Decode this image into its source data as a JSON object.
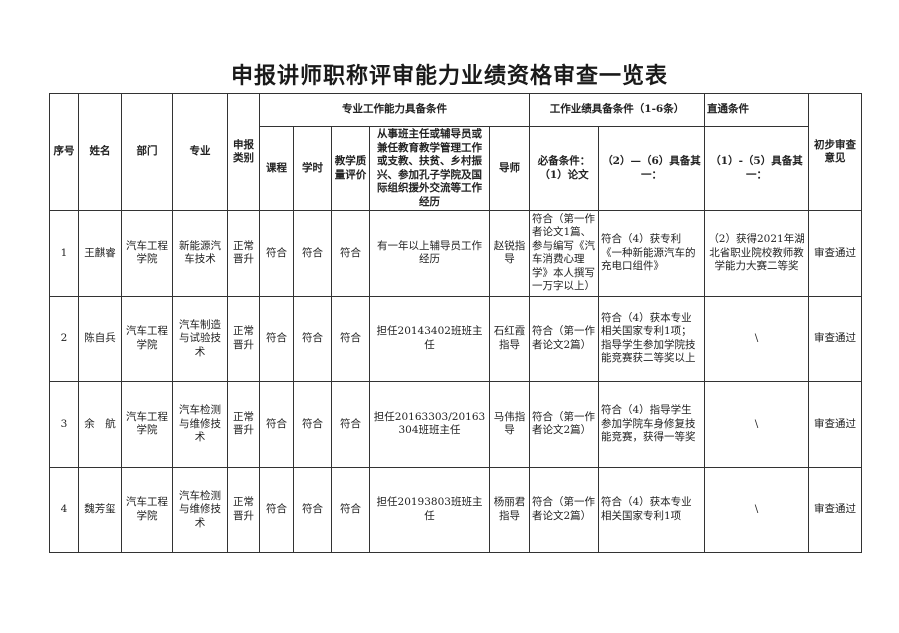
{
  "title": "申报讲师职称评审能力业绩资格审查一览表",
  "headers": {
    "seq": "序号",
    "name": "姓名",
    "dept": "部门",
    "major": "专业",
    "category": "申报类别",
    "group_ability": "专业工作能力具备条件",
    "course": "课程",
    "hours": "学时",
    "quality": "教学质量评价",
    "experience": "从事班主任或辅导员或兼任教育教学管理工作或支教、扶贫、乡村振兴、参加孔子学院及国际组织援外交流等工作经历",
    "mentor": "导师",
    "group_performance": "工作业绩具备条件（1-6条）",
    "paper": "必备条件：（1）论文",
    "perf_2_6": "（2）—（6）具备其一：",
    "group_direct": "直通条件",
    "direct_1_5": "（1）-（5）具备其一：",
    "opinion": "初步审查意见"
  },
  "rows": [
    {
      "seq": "1",
      "name": "王麒睿",
      "dept": "汽车工程学院",
      "major": "新能源汽车技术",
      "category": "正常晋升",
      "course": "符合",
      "hours": "符合",
      "quality": "符合",
      "experience": "有一年以上辅导员工作经历",
      "mentor": "赵锐指导",
      "paper": "符合（第一作者论文1篇、参与编写《汽车消费心理学》本人撰写一万字以上）",
      "perf": "符合（4）获专利《一种新能源汽车的充电口组件》",
      "direct": "（2）获得2021年湖北省职业院校教师教学能力大赛二等奖",
      "opinion": "审查通过"
    },
    {
      "seq": "2",
      "name": "陈自兵",
      "dept": "汽车工程学院",
      "major": "汽车制造与试验技术",
      "category": "正常晋升",
      "course": "符合",
      "hours": "符合",
      "quality": "符合",
      "experience": "担任20143402班班主任",
      "mentor": "石红霞指导",
      "paper": "符合（第一作者论文2篇）",
      "perf": "符合（4）获本专业相关国家专利1项；指导学生参加学院技能竞赛获二等奖以上",
      "direct": "\\",
      "opinion": "审查通过"
    },
    {
      "seq": "3",
      "name": "余　航",
      "dept": "汽车工程学院",
      "major": "汽车检测与维修技术",
      "category": "正常晋升",
      "course": "符合",
      "hours": "符合",
      "quality": "符合",
      "experience": "担任20163303/20163304班班主任",
      "mentor": "马伟指导",
      "paper": "符合（第一作者论文2篇）",
      "perf": "符合（4）指导学生参加学院车身修复技能竞赛，获得一等奖",
      "direct": "\\",
      "opinion": "审查通过"
    },
    {
      "seq": "4",
      "name": "魏芳玺",
      "dept": "汽车工程学院",
      "major": "汽车检测与维修技术",
      "category": "正常晋升",
      "course": "符合",
      "hours": "符合",
      "quality": "符合",
      "experience": "担任20193803班班主任",
      "mentor": "杨丽君指导",
      "paper": "符合（第一作者论文2篇）",
      "perf": "符合（4）获本专业相关国家专利1项",
      "direct": "\\",
      "opinion": "审查通过"
    }
  ]
}
